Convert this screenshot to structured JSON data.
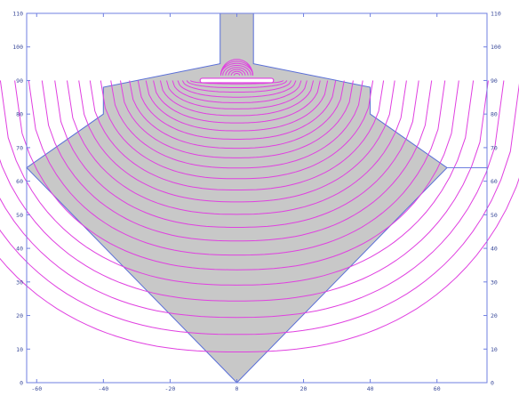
{
  "chart_data": {
    "type": "contour",
    "title": "",
    "xlabel": "",
    "ylabel": "",
    "xlim": [
      -63,
      75
    ],
    "ylim": [
      0,
      110
    ],
    "x_ticks": [
      -60,
      -40,
      -20,
      0,
      20,
      40,
      60
    ],
    "y_ticks": [
      0,
      10,
      20,
      30,
      40,
      50,
      60,
      70,
      80,
      90,
      100,
      110
    ],
    "grid": false,
    "colors": {
      "frame": "#6f7fe0",
      "region_fill": "#c8c8c8",
      "contour": "#e040e0",
      "tick_label": "#3a4a9a"
    },
    "region_outline": [
      [
        0,
        0
      ],
      [
        -63,
        64
      ],
      [
        -40,
        80
      ],
      [
        -40,
        88
      ],
      [
        -5,
        95
      ],
      [
        -5,
        110
      ],
      [
        5,
        110
      ],
      [
        5,
        95
      ],
      [
        40,
        88
      ],
      [
        40,
        80
      ],
      [
        63,
        64
      ],
      [
        0,
        0
      ]
    ],
    "electrode": {
      "x_min": -11,
      "x_max": 11,
      "y": 90
    },
    "lead_line": {
      "x_from": 63,
      "x_to": 75,
      "y": 64
    }
  }
}
